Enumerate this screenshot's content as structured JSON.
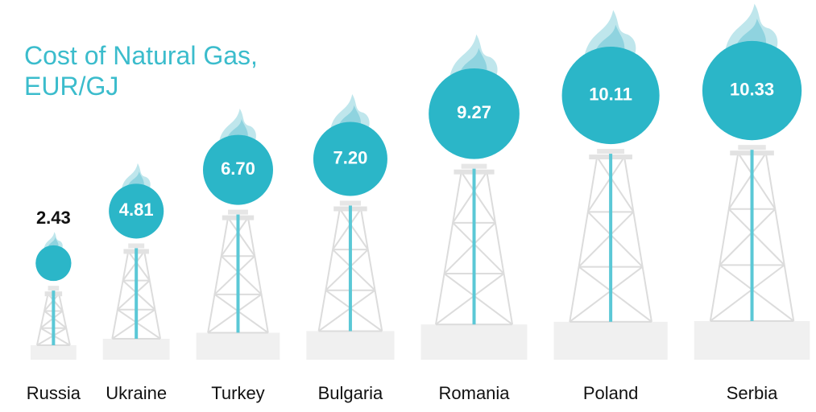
{
  "chart_data": {
    "type": "pictograph",
    "title": "Cost of Natural Gas, EUR/GJ",
    "categories": [
      "Russia",
      "Ukraine",
      "Turkey",
      "Bulgaria",
      "Romania",
      "Poland",
      "Serbia"
    ],
    "values": [
      2.43,
      4.81,
      6.7,
      7.2,
      9.27,
      10.11,
      10.33
    ],
    "value_labels": [
      "2.43",
      "4.81",
      "6.70",
      "7.20",
      "9.27",
      "10.11",
      "10.33"
    ],
    "color": "#2bb6c8"
  }
}
